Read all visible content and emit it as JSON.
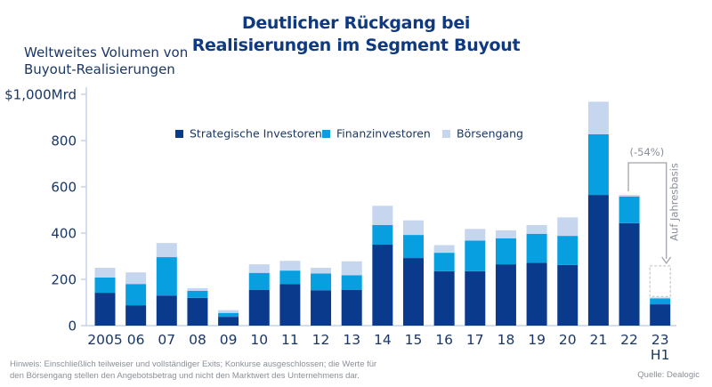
{
  "chart_data": {
    "type": "bar",
    "stacked": true,
    "title": "Deutlicher Rückgang bei Realisierungen im Segment Buyout",
    "title_lines": [
      "Deutlicher Rückgang bei",
      "Realisierungen im Segment Buyout"
    ],
    "ylabel_lines": [
      "Weltweites Volumen von",
      "Buyout-Realisierungen"
    ],
    "xlabel": "",
    "ylim": [
      0,
      1000
    ],
    "yticks": [
      0,
      200,
      400,
      600,
      800,
      1000
    ],
    "ytick_labels": [
      "0",
      "200",
      "400",
      "600",
      "800",
      "$1,000Mrd"
    ],
    "categories": [
      "2005",
      "06",
      "07",
      "08",
      "09",
      "10",
      "11",
      "12",
      "13",
      "14",
      "15",
      "16",
      "17",
      "18",
      "19",
      "20",
      "21",
      "22",
      "23 H1"
    ],
    "category_lines": [
      [
        "2005"
      ],
      [
        "06"
      ],
      [
        "07"
      ],
      [
        "08"
      ],
      [
        "09"
      ],
      [
        "10"
      ],
      [
        "11"
      ],
      [
        "12"
      ],
      [
        "13"
      ],
      [
        "14"
      ],
      [
        "15"
      ],
      [
        "16"
      ],
      [
        "17"
      ],
      [
        "18"
      ],
      [
        "19"
      ],
      [
        "20"
      ],
      [
        "21"
      ],
      [
        "22"
      ],
      [
        "23",
        "H1"
      ]
    ],
    "series": [
      {
        "name": "Strategische Investoren",
        "color": "#0a3a8c",
        "values": [
          142,
          88,
          130,
          120,
          38,
          155,
          180,
          153,
          155,
          350,
          292,
          235,
          235,
          265,
          272,
          262,
          565,
          443,
          92
        ]
      },
      {
        "name": "Finanzinvestoren",
        "color": "#089fe0",
        "values": [
          66,
          92,
          166,
          30,
          17,
          73,
          58,
          72,
          63,
          85,
          100,
          80,
          133,
          112,
          125,
          126,
          262,
          115,
          26
        ]
      },
      {
        "name": "Börsengang",
        "color": "#c5d6ee",
        "values": [
          42,
          50,
          61,
          12,
          12,
          37,
          42,
          25,
          60,
          83,
          63,
          33,
          50,
          35,
          38,
          80,
          141,
          7,
          4
        ]
      }
    ],
    "annualized_estimate": {
      "category": "23 H1",
      "value": 258,
      "label": "Auf Jahresbasis"
    },
    "annotations": [
      {
        "text": "(-54%)",
        "from": "22",
        "to": "23 H1"
      },
      {
        "text": "Auf Jahresbasis",
        "orientation": "vertical"
      }
    ],
    "legend": {
      "placement": "top-center",
      "entries": [
        "Strategische Investoren",
        "Finanzinvestoren",
        "Börsengang"
      ]
    },
    "grid": false
  },
  "footer": {
    "note_lines": [
      "Hinweis: Einschließlich teilweiser und vollständiger Exits; Konkurse ausgeschlossen; die Werte für",
      "den Börsengang stellen den Angebotsbetrag und nicht den Marktwert des Unternehmens dar."
    ],
    "source": "Quelle: Dealogic"
  }
}
